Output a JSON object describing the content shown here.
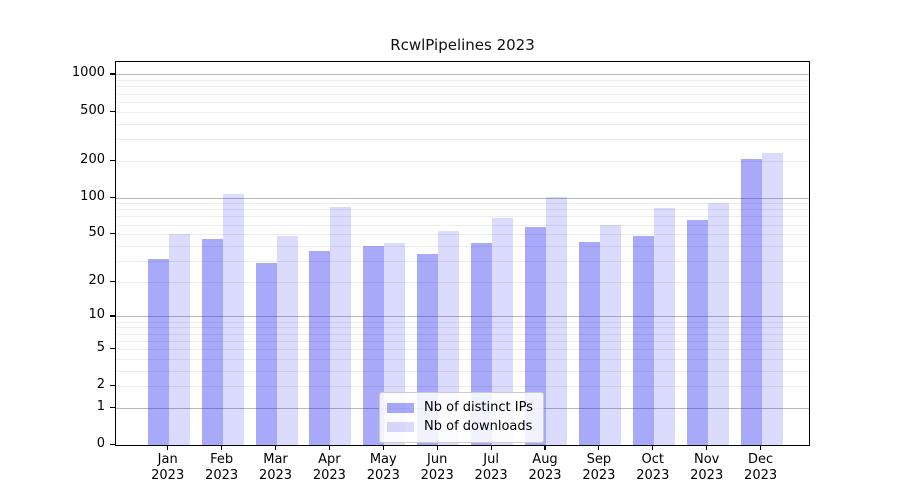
{
  "title": "RcwlPipelines 2023",
  "chart_data": {
    "type": "bar",
    "title": "RcwlPipelines 2023",
    "categories": [
      "Jan",
      "Feb",
      "Mar",
      "Apr",
      "May",
      "Jun",
      "Jul",
      "Aug",
      "Sep",
      "Oct",
      "Nov",
      "Dec"
    ],
    "category_year": "2023",
    "series": [
      {
        "name": "Nb of distinct IPs",
        "color": "#a9a9f7",
        "values": [
          31,
          46,
          29,
          36,
          40,
          34,
          42,
          57,
          43,
          48,
          65,
          208
        ]
      },
      {
        "name": "Nb of downloads",
        "color": "#d9d9fa",
        "values": [
          50,
          106,
          48,
          84,
          42,
          53,
          68,
          101,
          60,
          82,
          91,
          230
        ]
      }
    ],
    "xlabel": "",
    "ylabel": "",
    "yscale": "log1p",
    "ylim": [
      0,
      1200
    ],
    "yticks": [
      1000,
      500,
      200,
      100,
      50,
      20,
      10,
      5,
      2,
      1,
      0
    ],
    "grid": true,
    "gridline_major_values": [
      1,
      10,
      100,
      1000
    ],
    "legend_position": "bottom-center",
    "legend_entries": [
      "Nb of distinct IPs",
      "Nb of downloads"
    ]
  }
}
